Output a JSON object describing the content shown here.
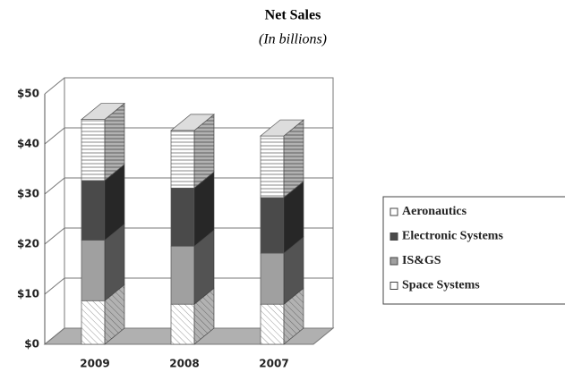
{
  "chart_data": {
    "type": "bar3d_stacked",
    "title": "Net Sales",
    "subtitle": "(In billions)",
    "categories": [
      "2009",
      "2008",
      "2007"
    ],
    "series": [
      {
        "name": "Aeronautics",
        "color": "#ffffff",
        "values": [
          12.2,
          11.5,
          12.3
        ]
      },
      {
        "name": "Electronic Systems",
        "color": "#4a4a4a",
        "values": [
          11.9,
          11.6,
          11.1
        ]
      },
      {
        "name": "IS&GS",
        "color": "#a0a0a0",
        "values": [
          12.1,
          11.6,
          10.2
        ]
      },
      {
        "name": "Space Systems",
        "color": "#f2f2f2",
        "values": [
          8.7,
          8.0,
          8.0
        ]
      }
    ],
    "ylim": [
      0,
      50
    ],
    "yticks": [
      {
        "value": 0,
        "label": "$0"
      },
      {
        "value": 10,
        "label": "$10"
      },
      {
        "value": 20,
        "label": "$20"
      },
      {
        "value": 30,
        "label": "$30"
      },
      {
        "value": 40,
        "label": "$40"
      },
      {
        "value": 50,
        "label": "$50"
      }
    ],
    "grid": true
  }
}
